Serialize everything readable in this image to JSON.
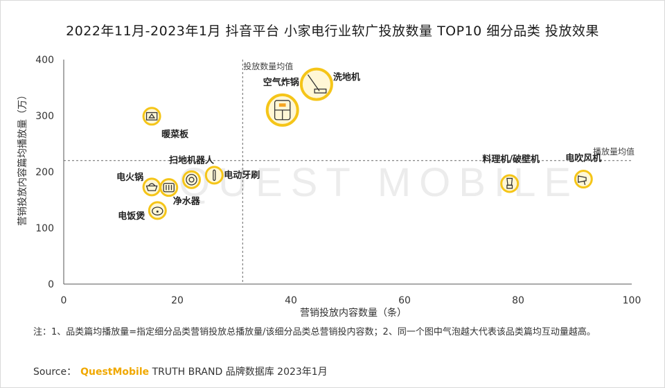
{
  "title": "2022年11月-2023年1月 抖音平台 小家电行业软广投放数量 TOP10 细分品类 投放效果",
  "watermark": "QUEST MOBILE",
  "chart_data": {
    "type": "scatter",
    "xlabel": "营销投放内容数量（条）",
    "ylabel": "营销投放内容篇均播放量（万）",
    "xlim": [
      0,
      100
    ],
    "ylim": [
      0,
      400
    ],
    "xticks": [
      0,
      20,
      40,
      60,
      80,
      100
    ],
    "yticks": [
      0,
      100,
      200,
      300,
      400
    ],
    "grid": false,
    "reference_lines": {
      "x": {
        "value": 31.5,
        "label": "投放数量均值"
      },
      "y": {
        "value": 220,
        "label": "播放量均值"
      }
    },
    "points": [
      {
        "label": "洗地机",
        "x": 44.5,
        "y": 356,
        "icon": "floor-scrubber-icon",
        "highlight": true
      },
      {
        "label": "空气炸锅",
        "x": 38.5,
        "y": 310,
        "icon": "air-fryer-icon",
        "highlight": true
      },
      {
        "label": "暖菜板",
        "x": 15.5,
        "y": 299,
        "icon": "warming-tray-icon",
        "highlight": false
      },
      {
        "label": "扫地机器人",
        "x": 22.5,
        "y": 186,
        "icon": "robot-vacuum-icon",
        "highlight": false
      },
      {
        "label": "电动牙刷",
        "x": 26.5,
        "y": 194,
        "icon": "electric-toothbrush-icon",
        "highlight": false
      },
      {
        "label": "电火锅",
        "x": 15.5,
        "y": 173,
        "icon": "electric-hotpot-icon",
        "highlight": false
      },
      {
        "label": "净水器",
        "x": 18.5,
        "y": 172,
        "icon": "water-purifier-icon",
        "highlight": false
      },
      {
        "label": "电饭煲",
        "x": 16.5,
        "y": 131,
        "icon": "rice-cooker-icon",
        "highlight": false
      },
      {
        "label": "料理机/破壁机",
        "x": 78.5,
        "y": 179,
        "icon": "blender-icon",
        "highlight": false
      },
      {
        "label": "电吹风机",
        "x": 91.5,
        "y": 187,
        "icon": "hair-dryer-icon",
        "highlight": false
      }
    ]
  },
  "note": "注：1、品类篇均播放量=指定细分品类营销投放总播放量/该细分品类总营销投内容数；2、同一个图中气泡越大代表该品类篇均互动量越高。",
  "source": {
    "prefix": "Source：",
    "brand": "QuestMobile",
    "suffix": " TRUTH BRAND 品牌数据库 2023年1月"
  },
  "colors": {
    "bubble_border": "#f5c518",
    "bubble_fill": "#fff7d6",
    "axis": "#555555",
    "reference_line": "#666666",
    "brand": "#f0a800"
  }
}
